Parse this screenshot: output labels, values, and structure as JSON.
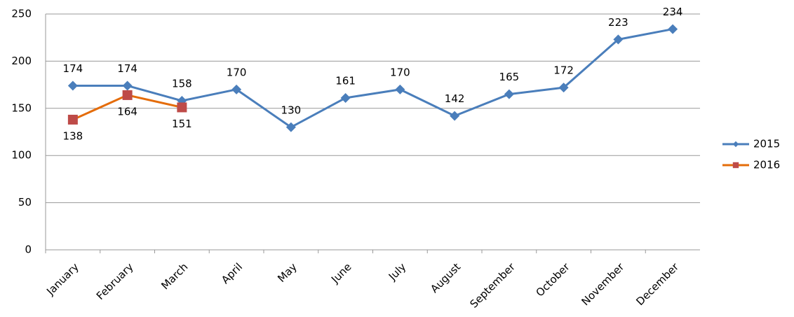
{
  "chart_data": {
    "type": "line",
    "categories": [
      "January",
      "February",
      "March",
      "April",
      "May",
      "June",
      "July",
      "August",
      "September",
      "October",
      "November",
      "December"
    ],
    "series": [
      {
        "name": "2015",
        "color": "#4a7ebb",
        "marker_color": "#4a7ebb",
        "marker": "diamond",
        "values": [
          174,
          174,
          158,
          170,
          130,
          161,
          170,
          142,
          165,
          172,
          223,
          234
        ]
      },
      {
        "name": "2016",
        "color": "#e46c0a",
        "marker_color": "#be4b48",
        "marker": "square",
        "values": [
          138,
          164,
          151,
          null,
          null,
          null,
          null,
          null,
          null,
          null,
          null,
          null
        ]
      }
    ],
    "ylim": [
      0,
      250
    ],
    "yticks": [
      0,
      50,
      100,
      150,
      200,
      250
    ],
    "grid": true,
    "legend": "right"
  }
}
